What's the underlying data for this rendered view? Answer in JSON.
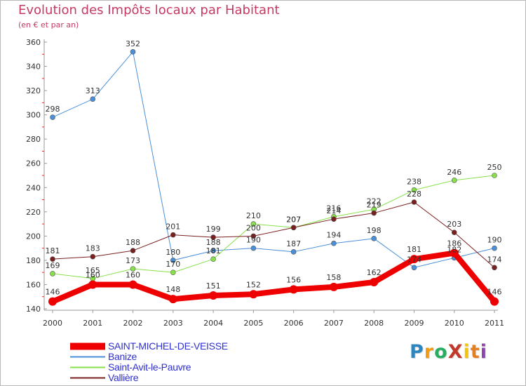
{
  "title": "Evolution des Impôts locaux par Habitant",
  "subtitle": "(en € et par an)",
  "logo": {
    "text": "ProXiti",
    "letters": [
      "P",
      "r",
      "o",
      "X",
      "i",
      "t",
      "i"
    ],
    "colors": [
      "#2e86c1",
      "#f39c12",
      "#27ae60",
      "#c0392b",
      "#f1c40f",
      "#e67e22",
      "#8e44ad"
    ]
  },
  "chart_data": {
    "type": "line",
    "title": "Evolution des Impôts locaux par Habitant",
    "subtitle": "(en € et par an)",
    "x": [
      "2000",
      "2001",
      "2002",
      "2003",
      "2004",
      "2005",
      "2006",
      "2007",
      "2008",
      "2009",
      "2010",
      "2011"
    ],
    "ylim": [
      140,
      360
    ],
    "yticks": [
      140,
      160,
      180,
      200,
      220,
      240,
      260,
      280,
      300,
      320,
      340,
      360
    ],
    "grid": false,
    "legend_position": "bottom-left",
    "series": [
      {
        "name": "SAINT-MICHEL-DE-VEISSE",
        "color": "#ee0000",
        "values": [
          146,
          160,
          160,
          148,
          151,
          152,
          156,
          158,
          162,
          181,
          186,
          146
        ]
      },
      {
        "name": "Banize",
        "color": "#4a8fd8",
        "values": [
          298,
          313,
          352,
          180,
          188,
          190,
          187,
          194,
          198,
          174,
          182,
          190
        ]
      },
      {
        "name": "Saint-Avit-le-Pauvre",
        "color": "#88e04a",
        "values": [
          169,
          165,
          173,
          170,
          181,
          210,
          207,
          216,
          222,
          238,
          246,
          250
        ]
      },
      {
        "name": "Vallière",
        "color": "#7a1f1f",
        "values": [
          181,
          183,
          188,
          201,
          199,
          200,
          207,
          214,
          219,
          228,
          203,
          174
        ]
      }
    ],
    "data_labels": [
      [
        "146",
        "160",
        "160",
        "148",
        "151",
        "152",
        "156",
        "158",
        "162",
        "181",
        "186",
        "146"
      ],
      [
        "298",
        "313",
        "352",
        "180",
        "188",
        "190",
        "187",
        "194",
        "198",
        "174",
        "182",
        "190"
      ],
      [
        "169",
        "165",
        "173",
        "170",
        "181",
        "210",
        "207",
        "216",
        "222",
        "238",
        "246",
        "250"
      ],
      [
        "181",
        "183",
        "188",
        "201",
        "199",
        "200",
        "207",
        "214",
        "219",
        "228",
        "203",
        "174"
      ]
    ]
  }
}
